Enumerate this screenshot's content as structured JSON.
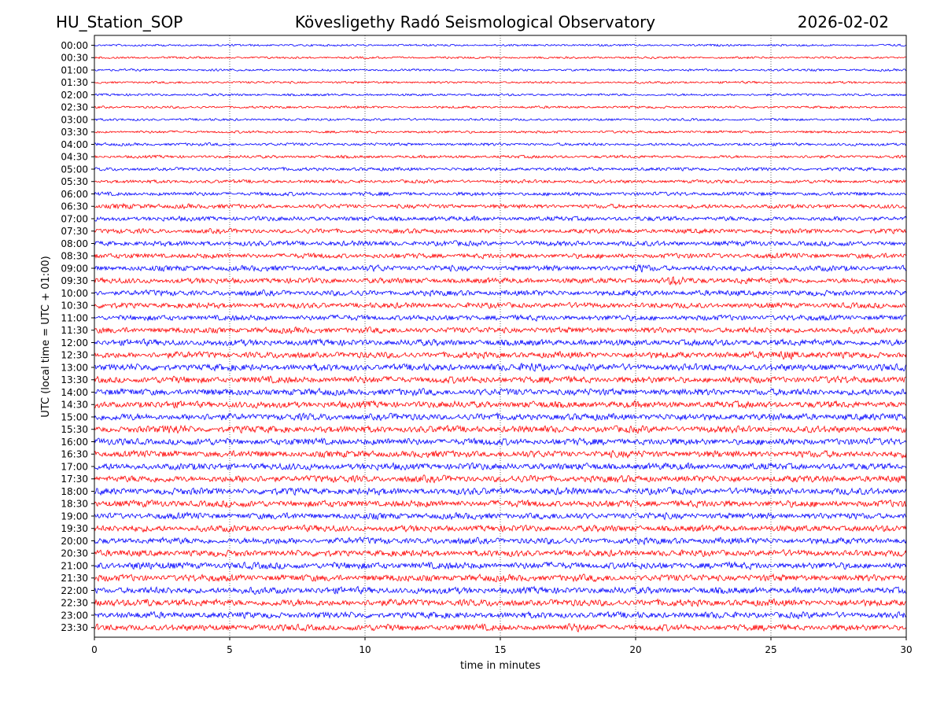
{
  "header": {
    "station": "HU_Station_SOP",
    "observatory": "Kövesligethy Radó Seismological Observatory",
    "date": "2026-02-02"
  },
  "chart_data": {
    "type": "line",
    "xlabel": "time in minutes",
    "ylabel": "UTC (local time = UTC + 01:00)",
    "xlim": [
      0,
      30
    ],
    "x_ticks": [
      0,
      5,
      10,
      15,
      20,
      25,
      30
    ],
    "x_gridlines": [
      5,
      10,
      15,
      20,
      25
    ],
    "grid": "vertical dotted at x ticks",
    "row_labels": [
      "00:00",
      "00:30",
      "01:00",
      "01:30",
      "02:00",
      "02:30",
      "03:00",
      "03:30",
      "04:00",
      "04:30",
      "05:00",
      "05:30",
      "06:00",
      "06:30",
      "07:00",
      "07:30",
      "08:00",
      "08:30",
      "09:00",
      "09:30",
      "10:00",
      "10:30",
      "11:00",
      "11:30",
      "12:00",
      "12:30",
      "13:00",
      "13:30",
      "14:00",
      "14:30",
      "15:00",
      "15:30",
      "16:00",
      "16:30",
      "17:00",
      "17:30",
      "18:00",
      "18:30",
      "19:00",
      "19:30",
      "20:00",
      "20:30",
      "21:00",
      "21:30",
      "22:00",
      "22:30",
      "23:00",
      "23:30"
    ],
    "trace_colors": [
      "#0000ff",
      "#ff0000"
    ],
    "relative_noise_amplitude": [
      0.25,
      0.25,
      0.27,
      0.27,
      0.28,
      0.28,
      0.28,
      0.3,
      0.35,
      0.35,
      0.4,
      0.4,
      0.45,
      0.5,
      0.55,
      0.55,
      0.6,
      0.6,
      0.65,
      0.65,
      0.65,
      0.65,
      0.65,
      0.7,
      0.75,
      0.75,
      0.8,
      0.8,
      0.8,
      0.8,
      0.8,
      0.8,
      0.8,
      0.8,
      0.8,
      0.8,
      0.8,
      0.8,
      0.75,
      0.75,
      0.75,
      0.75,
      0.8,
      0.8,
      0.8,
      0.8,
      0.75,
      0.75
    ],
    "events": [
      {
        "row": "06:30",
        "x_min": 1.0,
        "amplitude": 1.6
      },
      {
        "row": "06:30",
        "x_min": 3.4,
        "amplitude": 1.6
      },
      {
        "row": "09:00",
        "x_min": 10.5,
        "amplitude": 1.4
      },
      {
        "row": "09:00",
        "x_min": 20.2,
        "amplitude": 1.6
      },
      {
        "row": "09:30",
        "x_min": 21.5,
        "amplitude": 2.0
      },
      {
        "row": "09:30",
        "x_min": 24.0,
        "amplitude": 1.6
      },
      {
        "row": "13:00",
        "x_min": 16.2,
        "amplitude": 1.6
      },
      {
        "row": "12:30",
        "x_min": 25.6,
        "amplitude": 1.8
      },
      {
        "row": "15:30",
        "x_min": 3.0,
        "amplitude": 1.6
      },
      {
        "row": "21:00",
        "x_min": 1.7,
        "amplitude": 1.6
      },
      {
        "row": "22:30",
        "x_min": 1.9,
        "amplitude": 1.6
      },
      {
        "row": "23:30",
        "x_min": 17.8,
        "amplitude": 1.5
      }
    ]
  }
}
